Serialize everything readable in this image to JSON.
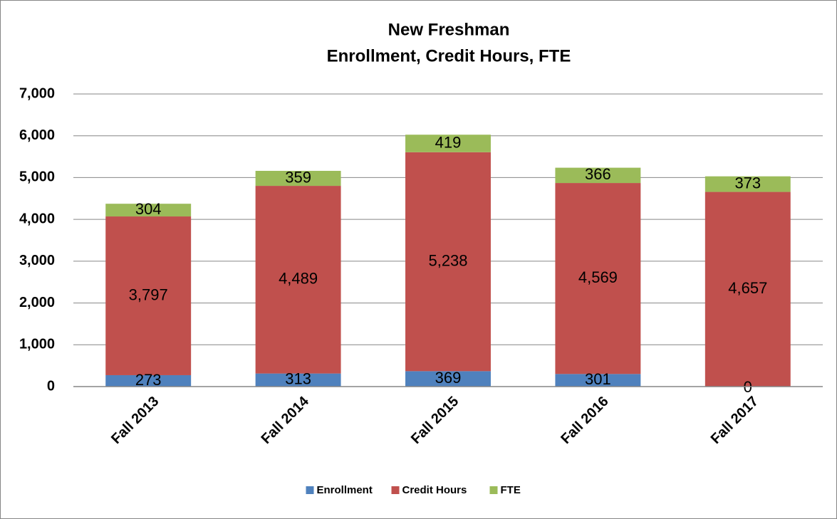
{
  "chart_data": {
    "type": "stacked_bar",
    "title": "New Freshman",
    "subtitle": "Enrollment, Credit Hours, FTE",
    "categories": [
      "Fall 2013",
      "Fall 2014",
      "Fall 2015",
      "Fall 2016",
      "Fall 2017"
    ],
    "series": [
      {
        "name": "Enrollment",
        "color": "#4f81bd",
        "values": [
          273,
          313,
          369,
          301,
          0
        ]
      },
      {
        "name": "Credit Hours",
        "color": "#c0504d",
        "values": [
          3797,
          4489,
          5238,
          4569,
          4657
        ],
        "value_labels": [
          "3,797",
          "4,489",
          "5,238",
          "4,569",
          "4,657"
        ]
      },
      {
        "name": "FTE",
        "color": "#9bbb59",
        "values": [
          304,
          359,
          419,
          366,
          373
        ]
      }
    ],
    "ylim": [
      0,
      7000
    ],
    "yticks": [
      0,
      {
        "value": 1000,
        "label": "1,000"
      },
      {
        "value": 2000,
        "label": "2,000"
      },
      {
        "value": 3000,
        "label": "3,000"
      },
      {
        "value": 4000,
        "label": "4,000"
      },
      {
        "value": 5000,
        "label": "5,000"
      },
      {
        "value": 6000,
        "label": "6,000"
      },
      {
        "value": 7000,
        "label": "7,000"
      }
    ],
    "grid": true,
    "legend": "bottom"
  }
}
